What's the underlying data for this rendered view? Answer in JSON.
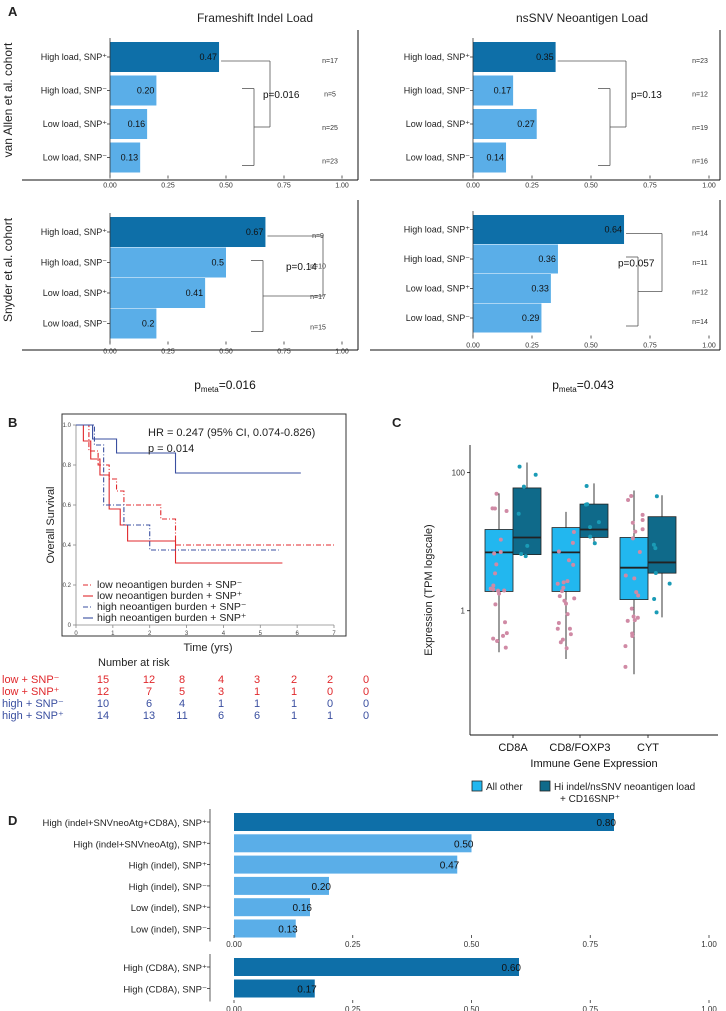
{
  "colors": {
    "dark": "#0e6fa8",
    "light": "#5aaee8",
    "red": "#e0282c",
    "blue": "#3a4fa0",
    "box_light": "#22b7ef",
    "box_dark": "#0f6a8a",
    "dot_light": "#d08aa5",
    "dot_dark": "#1a9bb6"
  },
  "panel_a": {
    "label": "A",
    "row_labels": {
      "top": "van Allen et al. cohort",
      "bottom": "Snyder et al. cohort"
    },
    "categories": [
      "High load, SNP⁺",
      "High load, SNP⁻",
      "Low load, SNP⁺",
      "Low load, SNP⁻"
    ],
    "col_titles": [
      "Frameshift Indel Load",
      "nsSNV Neoantigen Load"
    ],
    "pmeta": [
      {
        "prefix": "p",
        "sub": "meta",
        "value": "=0.016"
      },
      {
        "prefix": "p",
        "sub": "meta",
        "value": "=0.043"
      }
    ]
  },
  "panel_b": {
    "label": "B",
    "hr_text": "HR = 0.247 (95% CI, 0.074-0.826)",
    "p_text": "p = 0.014",
    "ylabel": "Overall Survival",
    "xlabel": "Time (yrs)",
    "risk_title": "Number at risk",
    "legend": [
      "low neoantigen burden + SNP⁻",
      "low neoantigen burden + SNP⁺",
      "high neoantigen burden + SNP⁻",
      "high neoantigen burden + SNP⁺"
    ],
    "risk_rows": [
      {
        "label": "low + SNP⁻",
        "values": [
          "15",
          "12",
          "8",
          "4",
          "3",
          "2",
          "2",
          "0"
        ]
      },
      {
        "label": "low + SNP⁺",
        "values": [
          "12",
          "7",
          "5",
          "3",
          "1",
          "1",
          "0",
          "0"
        ]
      },
      {
        "label": "high + SNP⁻",
        "values": [
          "10",
          "6",
          "4",
          "1",
          "1",
          "1",
          "0",
          "0"
        ]
      },
      {
        "label": "high + SNP⁺",
        "values": [
          "14",
          "13",
          "11",
          "6",
          "6",
          "1",
          "1",
          "0"
        ]
      }
    ]
  },
  "panel_c": {
    "label": "C",
    "ylabel": "Expression (TPM logscale)",
    "xlabel": "Immune Gene Expression",
    "legend": [
      "All other",
      "Hi indel/nsSNV neoantigen load",
      "+ CD16SNP⁺"
    ]
  },
  "panel_d": {
    "label": "D"
  },
  "chart_data": [
    {
      "type": "bar",
      "orientation": "horizontal",
      "title": "Frameshift Indel Load",
      "cohort": "van Allen et al. cohort",
      "categories": [
        "High load, SNP⁺",
        "High load, SNP⁻",
        "Low load, SNP⁺",
        "Low load, SNP⁻"
      ],
      "values": [
        0.47,
        0.2,
        0.16,
        0.13
      ],
      "value_labels": [
        "0.47",
        "0.20",
        "0.16",
        "0.13"
      ],
      "n_labels": [
        "n=17",
        "n=5",
        "n=25",
        "n=23"
      ],
      "p_label": "p=0.016",
      "xlim": [
        0,
        1
      ],
      "xticks": [
        0,
        0.25,
        0.5,
        0.75,
        1
      ],
      "xtick_labels": [
        "0.00",
        "0.25",
        "0.50",
        "0.75",
        "1.00"
      ]
    },
    {
      "type": "bar",
      "orientation": "horizontal",
      "title": "nsSNV Neoantigen Load",
      "cohort": "van Allen et al. cohort",
      "categories": [
        "High load, SNP⁺",
        "High load, SNP⁻",
        "Low load, SNP⁺",
        "Low load, SNP⁻"
      ],
      "values": [
        0.35,
        0.17,
        0.27,
        0.14
      ],
      "value_labels": [
        "0.35",
        "0.17",
        "0.27",
        "0.14"
      ],
      "n_labels": [
        "n=23",
        "n=12",
        "n=19",
        "n=16"
      ],
      "p_label": "p=0.13",
      "xlim": [
        0,
        1
      ],
      "xticks": [
        0,
        0.25,
        0.5,
        0.75,
        1
      ],
      "xtick_labels": [
        "0.00",
        "0.25",
        "0.50",
        "0.75",
        "1.00"
      ]
    },
    {
      "type": "bar",
      "orientation": "horizontal",
      "title": "Frameshift Indel Load",
      "cohort": "Snyder et al. cohort",
      "categories": [
        "High load, SNP⁺",
        "High load, SNP⁻",
        "Low load, SNP⁺",
        "Low load, SNP⁻"
      ],
      "values": [
        0.67,
        0.5,
        0.41,
        0.2
      ],
      "value_labels": [
        "0.67",
        "0.5",
        "0.41",
        "0.2"
      ],
      "n_labels": [
        "n=9",
        "n=10",
        "n=17",
        "n=15"
      ],
      "p_label": "p=0.14",
      "xlim": [
        0,
        1
      ],
      "xticks": [
        0,
        0.25,
        0.5,
        0.75,
        1
      ],
      "xtick_labels": [
        "0.00",
        "0.25",
        "0.50",
        "0.75",
        "1.00"
      ]
    },
    {
      "type": "bar",
      "orientation": "horizontal",
      "title": "nsSNV Neoantigen Load",
      "cohort": "Snyder et al. cohort",
      "categories": [
        "High load, SNP⁺",
        "High load, SNP⁻",
        "Low load, SNP⁺",
        "Low load, SNP⁻"
      ],
      "values": [
        0.64,
        0.36,
        0.33,
        0.29
      ],
      "value_labels": [
        "0.64",
        "0.36",
        "0.33",
        "0.29"
      ],
      "n_labels": [
        "n=14",
        "n=11",
        "n=12",
        "n=14"
      ],
      "p_label": "p=0.057",
      "xlim": [
        0,
        1
      ],
      "xticks": [
        0,
        0.25,
        0.5,
        0.75,
        1
      ],
      "xtick_labels": [
        "0.00",
        "0.25",
        "0.50",
        "0.75",
        "1.00"
      ]
    },
    {
      "type": "line",
      "subtype": "kaplan-meier",
      "title": "Overall Survival",
      "xlabel": "Time (yrs)",
      "ylabel": "Overall Survival",
      "xlim": [
        0,
        7
      ],
      "ylim": [
        0,
        1
      ],
      "xticks": [
        0,
        1,
        2,
        3,
        4,
        5,
        6,
        7
      ],
      "xtick_labels": [
        "0",
        "1",
        "2",
        "3",
        "4",
        "5",
        "6",
        "7"
      ],
      "yticks": [
        0,
        0.2,
        0.4,
        0.6,
        0.8,
        1.0
      ],
      "ytick_labels": [
        "0",
        "0.2",
        "0.4",
        "0.6",
        "0.8",
        "1.0"
      ],
      "series": [
        {
          "name": "low neoantigen burden + SNP⁻",
          "color": "#e0282c",
          "dash": "dashdot",
          "x": [
            0,
            0.35,
            0.6,
            0.9,
            1.1,
            1.3,
            2.3,
            2.7,
            7.0
          ],
          "y": [
            1.0,
            0.87,
            0.8,
            0.73,
            0.67,
            0.6,
            0.53,
            0.4,
            0.4
          ]
        },
        {
          "name": "low neoantigen burden + SNP⁺",
          "color": "#e0282c",
          "dash": "solid",
          "x": [
            0,
            0.2,
            0.4,
            0.65,
            0.9,
            1.2,
            1.4,
            2.2,
            2.7,
            5.6
          ],
          "y": [
            1.0,
            0.92,
            0.83,
            0.75,
            0.58,
            0.5,
            0.42,
            0.42,
            0.31,
            0.31
          ]
        },
        {
          "name": "high neoantigen burden + SNP⁻",
          "color": "#3a4fa0",
          "dash": "dashdot",
          "x": [
            0,
            0.5,
            0.75,
            1.3,
            2.0,
            5.5
          ],
          "y": [
            1.0,
            0.9,
            0.6,
            0.5,
            0.375,
            0.375
          ]
        },
        {
          "name": "high neoantigen burden + SNP⁺",
          "color": "#3a4fa0",
          "dash": "solid",
          "x": [
            0,
            0.45,
            1.1,
            2.7,
            6.1
          ],
          "y": [
            1.0,
            0.93,
            0.86,
            0.76,
            0.76
          ]
        }
      ]
    },
    {
      "type": "box",
      "title": "Immune Gene Expression",
      "ylabel": "Expression (TPM logscale)",
      "yscale": "log",
      "yticks": [
        1,
        100
      ],
      "ytick_labels": [
        "1",
        "100"
      ],
      "ylim_log10": [
        -1.8,
        2.4
      ],
      "categories": [
        "CD8A",
        "CD8/FOXP3",
        "CYT"
      ],
      "series": [
        {
          "name": "All other",
          "boxes": [
            {
              "q1": 1.9,
              "median": 7.0,
              "q3": 15,
              "lo": 0.25,
              "hi": 50
            },
            {
              "q1": 1.9,
              "median": 7.0,
              "q3": 16,
              "lo": 0.2,
              "hi": 27
            },
            {
              "q1": 1.45,
              "median": 4.2,
              "q3": 11.5,
              "lo": 0.12,
              "hi": 55
            }
          ]
        },
        {
          "name": "Hi indel/nsSNV neoantigen load + CD16SNP⁺",
          "boxes": [
            {
              "q1": 6.5,
              "median": 11.5,
              "q3": 60,
              "lo": 6.0,
              "hi": 140
            },
            {
              "q1": 11.5,
              "median": 15,
              "q3": 35,
              "lo": 9,
              "hi": 70
            },
            {
              "q1": 3.5,
              "median": 5.0,
              "q3": 23,
              "lo": 0.8,
              "hi": 47
            }
          ]
        }
      ]
    },
    {
      "type": "bar",
      "orientation": "horizontal",
      "categories": [
        "High (indel+SNVneoAtg+CD8A), SNP⁺",
        "High (indel+SNVneoAtg), SNP⁺",
        "High (indel), SNP⁺",
        "High (indel), SNP⁻",
        "Low (indel), SNP⁺",
        "Low (indel), SNP⁻"
      ],
      "values": [
        0.8,
        0.5,
        0.47,
        0.2,
        0.16,
        0.13
      ],
      "value_labels": [
        "0.80",
        "0.50",
        "0.47",
        "0.20",
        "0.16",
        "0.13"
      ],
      "xlim": [
        0,
        1
      ],
      "xticks": [
        0,
        0.25,
        0.5,
        0.75,
        1
      ],
      "xtick_labels": [
        "0.00",
        "0.25",
        "0.50",
        "0.75",
        "1.00"
      ]
    },
    {
      "type": "bar",
      "orientation": "horizontal",
      "categories": [
        "High (CD8A), SNP⁺",
        "High (CD8A), SNP⁻"
      ],
      "values": [
        0.6,
        0.17
      ],
      "value_labels": [
        "0.60",
        "0.17"
      ],
      "xlim": [
        0,
        1
      ],
      "xticks": [
        0,
        0.25,
        0.5,
        0.75,
        1
      ],
      "xtick_labels": [
        "0.00",
        "0.25",
        "0.50",
        "0.75",
        "1.00"
      ]
    }
  ]
}
